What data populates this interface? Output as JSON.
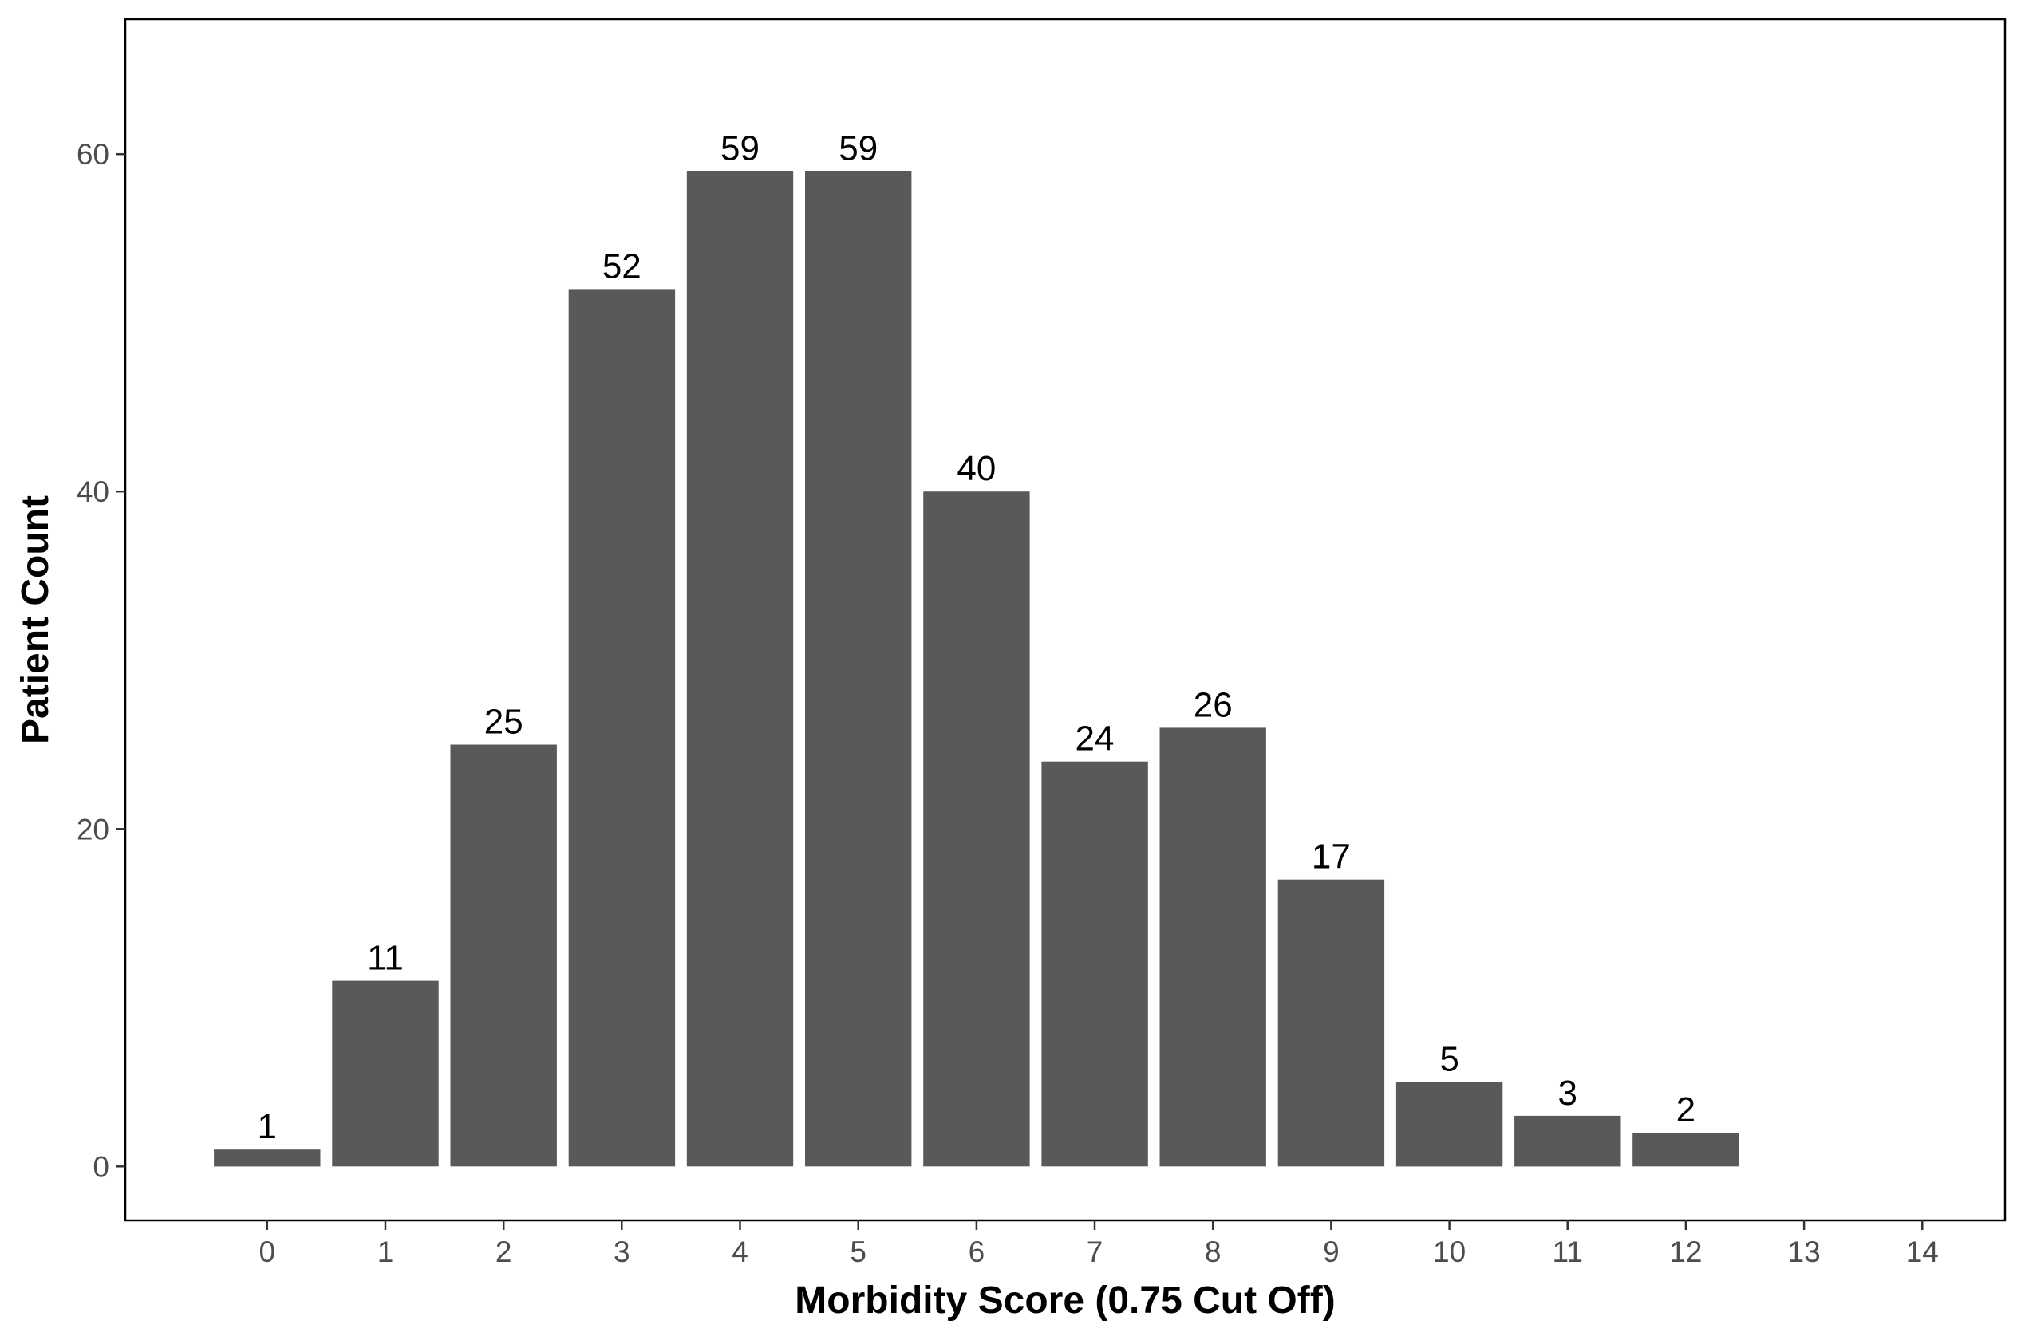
{
  "chart_data": {
    "type": "bar",
    "title": "",
    "xlabel": "Morbidity Score (0.75 Cut Off)",
    "ylabel": "Patient Count",
    "categories": [
      "0",
      "1",
      "2",
      "3",
      "4",
      "5",
      "6",
      "7",
      "8",
      "9",
      "10",
      "11",
      "12"
    ],
    "values": [
      1,
      11,
      25,
      52,
      59,
      59,
      40,
      24,
      26,
      17,
      5,
      3,
      2
    ],
    "x_ticks": [
      "0",
      "1",
      "2",
      "3",
      "4",
      "5",
      "6",
      "7",
      "8",
      "9",
      "10",
      "11",
      "12",
      "13",
      "14"
    ],
    "y_ticks": [
      0,
      20,
      40,
      60
    ],
    "xlim": [
      -1.2,
      14.7
    ],
    "ylim": [
      -3.2,
      68
    ],
    "bar_color": "#595959",
    "grid": false,
    "legend": "none"
  }
}
